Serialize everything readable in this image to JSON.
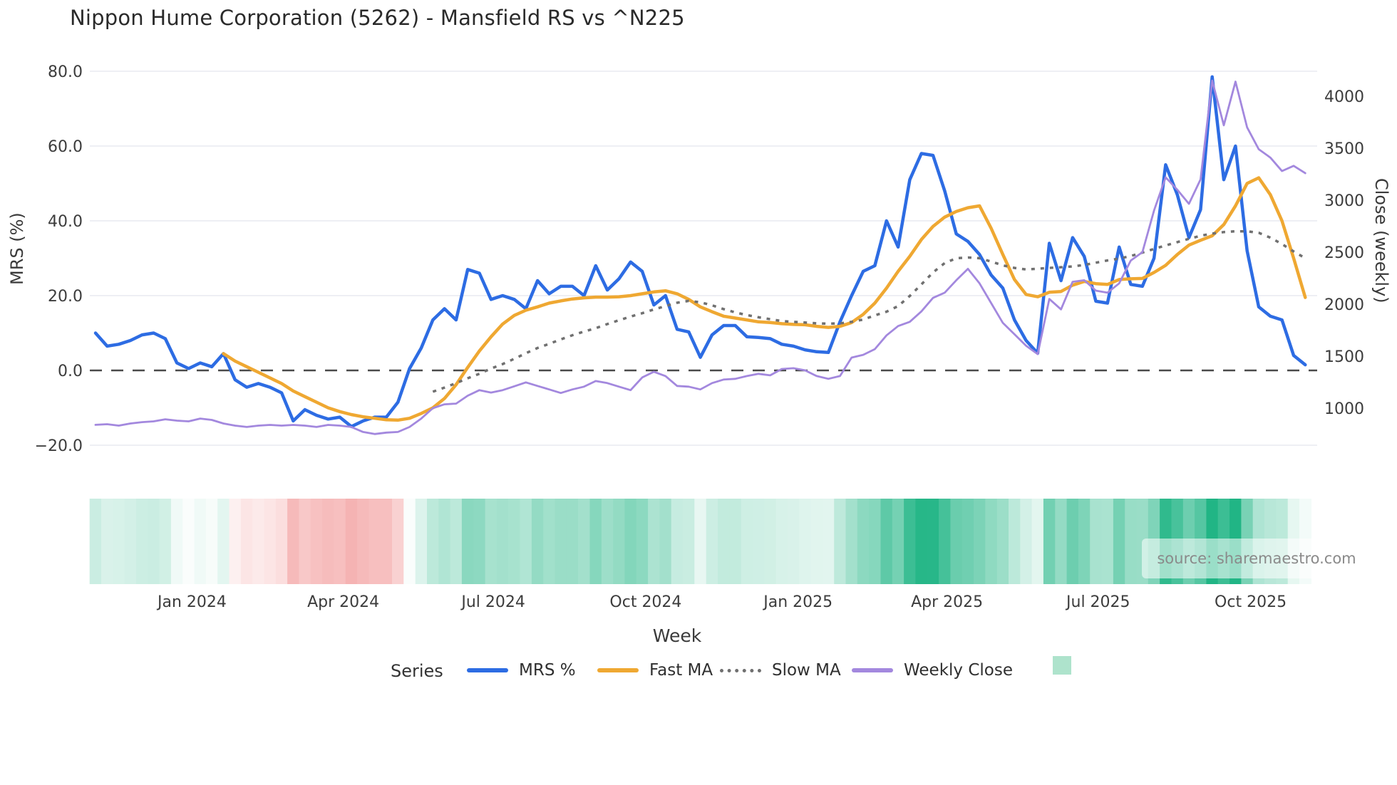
{
  "title": "Nippon Hume Corporation (5262) - Mansfield RS vs ^N225",
  "watermark": "source: sharemaestro.com",
  "axes": {
    "x_title": "Week",
    "y_left_title": "MRS (%)",
    "y_right_title": "Close (weekly)",
    "y_left_ticks": [
      "80.0",
      "60.0",
      "40.0",
      "20.0",
      "0.0",
      "−20.0"
    ],
    "y_left_tick_values": [
      80,
      60,
      40,
      20,
      0,
      -20
    ],
    "y_right_ticks": [
      "4000",
      "3500",
      "3000",
      "2500",
      "2000",
      "1500",
      "1000"
    ],
    "y_right_tick_values": [
      4000,
      3500,
      3000,
      2500,
      2000,
      1500,
      1000
    ],
    "x_ticks": [
      {
        "label": "Jan 2024",
        "week": 8.3
      },
      {
        "label": "Apr 2024",
        "week": 21.3
      },
      {
        "label": "Jul 2024",
        "week": 34.2
      },
      {
        "label": "Oct 2024",
        "week": 47.3
      },
      {
        "label": "Jan 2025",
        "week": 60.4
      },
      {
        "label": "Apr 2025",
        "week": 73.2
      },
      {
        "label": "Jul 2025",
        "week": 86.2
      },
      {
        "label": "Oct 2025",
        "week": 99.3
      }
    ]
  },
  "legend": {
    "title": "Series",
    "items": [
      {
        "label": "MRS %",
        "color": "#2d6ce3",
        "style": "solid"
      },
      {
        "label": "Fast MA",
        "color": "#efa832",
        "style": "solid"
      },
      {
        "label": "Slow MA",
        "color": "#707070",
        "style": "dotted"
      },
      {
        "label": "Weekly Close",
        "color": "#a388de",
        "style": "solid"
      }
    ],
    "extra_swatch_color": "#aee3cc"
  },
  "colors": {
    "grid": "#e8eaf1",
    "zero_line": "#4a4a4a",
    "tick_text": "#3c3c3c",
    "heatmap_positive": "#21b585",
    "heatmap_negative": "#f5b3b3"
  },
  "chart_data": {
    "type": "line",
    "title": "Nippon Hume Corporation (5262) - Mansfield RS vs ^N225",
    "xlabel": "Week",
    "x_tick_labels": [
      "Jan 2024",
      "Apr 2024",
      "Jul 2024",
      "Oct 2024",
      "Jan 2025",
      "Apr 2025",
      "Jul 2025",
      "Oct 2025"
    ],
    "x_unit": "weekly observations, 105 weeks (Nov 2023 - Nov 2025)",
    "y_left": {
      "label": "MRS (%)",
      "ticks": [
        80,
        60,
        40,
        20,
        0,
        -20
      ],
      "zero_line_dashed": true
    },
    "y_right": {
      "label": "Close (weekly)",
      "ticks": [
        4000,
        3500,
        3000,
        2500,
        2000,
        1500,
        1000
      ]
    },
    "grid": "horizontal only",
    "legend_position": "bottom",
    "series": [
      {
        "name": "MRS %",
        "axis": "left",
        "color": "#2d6ce3",
        "style": "solid",
        "width": 4.5,
        "start_week": 0,
        "values": [
          10,
          6.5,
          7,
          8,
          9.5,
          10,
          8.5,
          2,
          0.5,
          2,
          1,
          4.5,
          -2.5,
          -4.5,
          -3.5,
          -4.5,
          -6,
          -13.5,
          -10.5,
          -12,
          -13,
          -12.5,
          -15,
          -13.5,
          -12.5,
          -12.5,
          -8.5,
          0.5,
          6,
          13.5,
          16.5,
          13.5,
          27,
          26,
          19,
          20,
          19,
          16.5,
          24,
          20.5,
          22.5,
          22.5,
          20,
          28,
          21.5,
          24.5,
          29,
          26.5,
          17.5,
          20,
          11,
          10.3,
          3.5,
          9.5,
          12,
          12,
          9,
          8.8,
          8.5,
          7,
          6.5,
          5.5,
          5,
          4.8,
          13,
          20,
          26.5,
          28,
          40,
          33,
          51,
          58,
          57.5,
          48,
          36.5,
          34.5,
          31,
          25.5,
          22,
          13.5,
          8,
          4.6,
          34,
          24,
          35.5,
          30.5,
          18.5,
          18,
          33,
          23,
          22.5,
          30,
          55,
          47,
          35.5,
          43,
          78.5,
          51,
          60,
          32,
          17,
          14.5,
          13.5,
          4,
          1.5
        ]
      },
      {
        "name": "Fast MA",
        "axis": "left",
        "color": "#efa832",
        "style": "solid",
        "width": 4.5,
        "start_week": 11,
        "values": [
          4.5,
          2.5,
          1,
          -0.5,
          -2,
          -3.5,
          -5.5,
          -7,
          -8.5,
          -10,
          -11,
          -11.8,
          -12.4,
          -12.8,
          -13.2,
          -13.3,
          -12.8,
          -11.5,
          -10,
          -7.5,
          -3.8,
          0.8,
          5.2,
          9,
          12.4,
          14.7,
          16.1,
          17,
          18,
          18.6,
          19.1,
          19.4,
          19.6,
          19.6,
          19.7,
          20,
          20.5,
          21,
          21.3,
          20.5,
          19,
          17,
          15.7,
          14.5,
          14,
          13.5,
          13,
          12.8,
          12.5,
          12.3,
          12.2,
          11.8,
          11.5,
          11.8,
          12.8,
          15,
          18,
          22,
          26.5,
          30.5,
          35,
          38.5,
          41,
          42.5,
          43.5,
          44,
          38,
          31,
          24.3,
          20.3,
          19.7,
          20.9,
          21.1,
          22.8,
          23.8,
          23.2,
          23,
          24.3,
          24.5,
          24.6,
          26.2,
          28.1,
          31,
          33.5,
          34.8,
          36,
          39,
          44,
          50,
          51.5,
          47,
          40,
          30,
          19.5
        ]
      },
      {
        "name": "Slow MA",
        "axis": "left",
        "color": "#707070",
        "style": "dotted",
        "width": 3.5,
        "start_week": 29,
        "values": [
          -5.7,
          -4.6,
          -3.4,
          -2.1,
          -0.9,
          0.5,
          1.7,
          3.1,
          4.6,
          6,
          7.1,
          8.3,
          9.4,
          10.4,
          11.3,
          12.4,
          13.4,
          14.4,
          15.3,
          16.3,
          17.2,
          18.1,
          18.6,
          18.2,
          17.4,
          16.4,
          15.5,
          14.8,
          14.2,
          13.7,
          13.2,
          13,
          12.8,
          12.6,
          12.5,
          12.6,
          13,
          13.6,
          14.7,
          15.7,
          17.2,
          19.9,
          23,
          26.2,
          28.7,
          30,
          30.2,
          30,
          29.1,
          28.1,
          27.4,
          27,
          27.2,
          27.4,
          27.6,
          27.8,
          28.2,
          28.8,
          29.4,
          29.9,
          30.6,
          31.5,
          32.5,
          33.4,
          34.3,
          35.2,
          36,
          36.6,
          37,
          37.2,
          37.2,
          36.8,
          35.5,
          33.8,
          31.8,
          30
        ]
      },
      {
        "name": "Weekly Close",
        "axis": "right",
        "color": "#a388de",
        "style": "solid",
        "width": 2.8,
        "start_week": 0,
        "values": [
          840,
          846,
          832,
          853,
          866,
          873,
          893,
          880,
          873,
          900,
          887,
          853,
          832,
          819,
          832,
          839,
          832,
          839,
          832,
          819,
          839,
          832,
          819,
          771,
          751,
          765,
          771,
          819,
          900,
          1000,
          1037,
          1044,
          1120,
          1173,
          1150,
          1173,
          1210,
          1248,
          1214,
          1180,
          1146,
          1180,
          1207,
          1261,
          1241,
          1207,
          1173,
          1295,
          1350,
          1309,
          1214,
          1207,
          1180,
          1241,
          1275,
          1282,
          1309,
          1330,
          1316,
          1377,
          1384,
          1364,
          1309,
          1282,
          1309,
          1486,
          1513,
          1568,
          1700,
          1790,
          1830,
          1930,
          2060,
          2110,
          2230,
          2340,
          2200,
          2010,
          1820,
          1710,
          1600,
          1520,
          2050,
          1950,
          2215,
          2230,
          2130,
          2110,
          2200,
          2420,
          2500,
          2900,
          3220,
          3100,
          2965,
          3200,
          4150,
          3720,
          4140,
          3700,
          3490,
          3410,
          3280,
          3330,
          3260
        ]
      }
    ],
    "heatmap_strip": {
      "description": "weekly color strip below plot, color-coded by MRS % value",
      "derived_from": "MRS %",
      "positive_color": "#21b585",
      "negative_color": "#f5b3b3",
      "neutral_color": "#ffffff"
    }
  }
}
